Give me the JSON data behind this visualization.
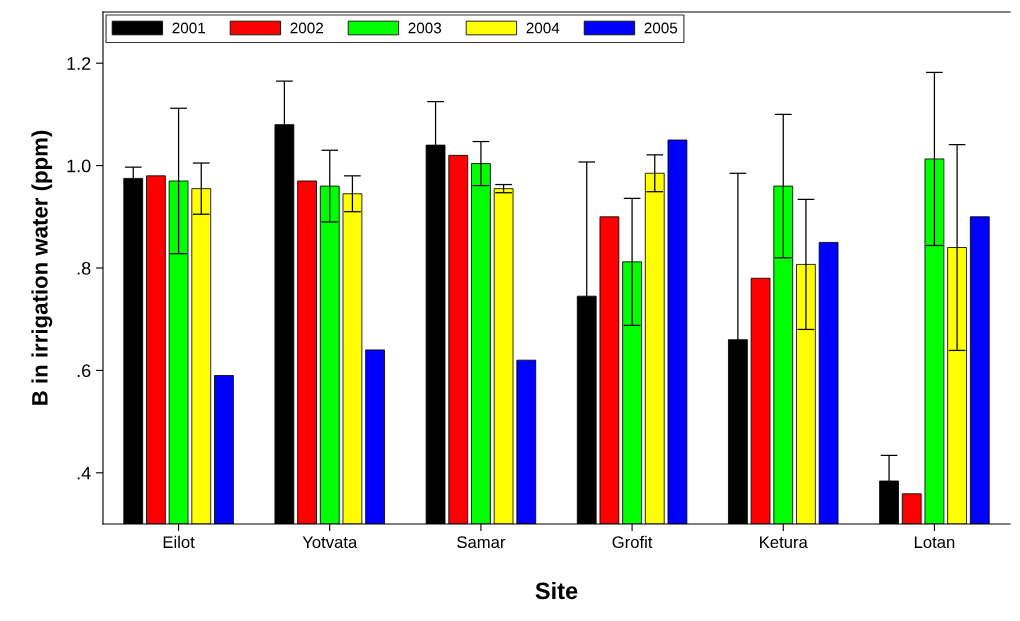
{
  "chart_data": {
    "type": "bar",
    "xlabel": "Site",
    "ylabel": "B in irrigation water (ppm)",
    "categories": [
      "Eilot",
      "Yotvata",
      "Samar",
      "Grofit",
      "Ketura",
      "Lotan"
    ],
    "series": [
      {
        "name": "2001",
        "color": "#000000",
        "values": [
          0.975,
          1.08,
          1.04,
          0.745,
          0.66,
          0.384
        ],
        "errors": [
          0.022,
          0.085,
          0.085,
          0.262,
          0.325,
          0.05
        ]
      },
      {
        "name": "2002",
        "color": "#ff0000",
        "values": [
          0.98,
          0.97,
          1.02,
          0.9,
          0.78,
          0.359
        ]
      },
      {
        "name": "2003",
        "color": "#00ff00",
        "values": [
          0.97,
          0.96,
          1.004,
          0.812,
          0.96,
          1.013
        ],
        "errors": [
          0.142,
          0.07,
          0.043,
          0.124,
          0.14,
          0.169
        ]
      },
      {
        "name": "2004",
        "color": "#ffff00",
        "values": [
          0.955,
          0.945,
          0.955,
          0.985,
          0.807,
          0.84
        ],
        "errors": [
          0.05,
          0.035,
          0.008,
          0.036,
          0.127,
          0.201
        ]
      },
      {
        "name": "2005",
        "color": "#0000ff",
        "values": [
          0.59,
          0.64,
          0.62,
          1.05,
          0.85,
          0.9
        ]
      }
    ],
    "ylim": [
      0.3,
      1.3
    ],
    "yticks": [
      {
        "value": 0.4,
        "label": ".4"
      },
      {
        "value": 0.6,
        "label": ".6"
      },
      {
        "value": 0.8,
        "label": ".8"
      },
      {
        "value": 1.0,
        "label": "1.0"
      },
      1.2
    ],
    "grid": false,
    "legend": "top left"
  }
}
